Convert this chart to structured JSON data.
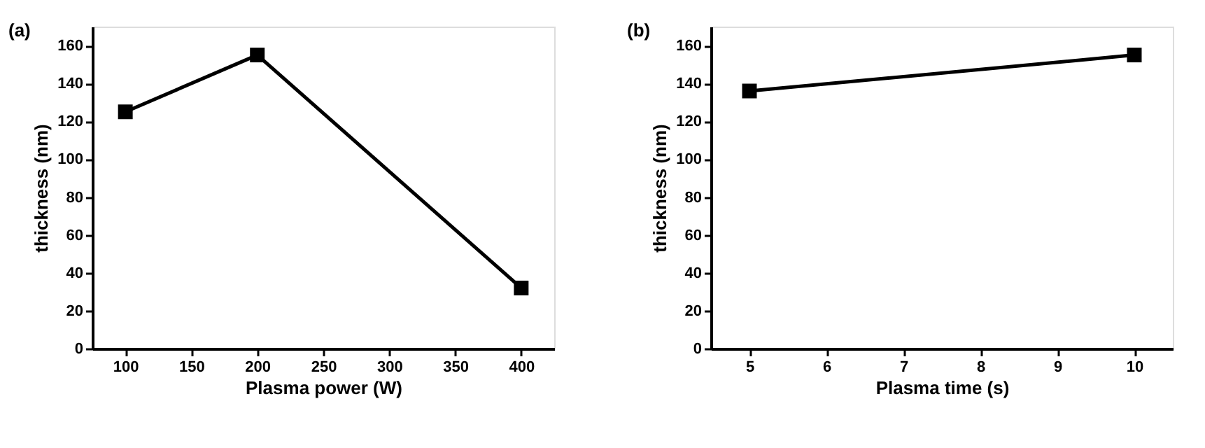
{
  "chart_data": [
    {
      "type": "line",
      "title": "(a)",
      "xlabel": "Plasma power (W)",
      "ylabel": "thickness (nm)",
      "x": [
        100,
        200,
        400
      ],
      "series": [
        {
          "color": "#000000",
          "values": [
            125,
            155,
            32
          ]
        }
      ],
      "xlim": [
        75,
        425
      ],
      "xticks": [
        100,
        150,
        200,
        250,
        300,
        350,
        400
      ],
      "ylim": [
        0,
        170
      ],
      "yticks": [
        0,
        20,
        40,
        60,
        80,
        100,
        120,
        140,
        160
      ],
      "grid": false,
      "marker": "square",
      "line_style": "solid"
    },
    {
      "type": "line",
      "title": "(b)",
      "xlabel": "Plasma time (s)",
      "ylabel": "thickness (nm)",
      "x": [
        5,
        10
      ],
      "series": [
        {
          "color": "#000000",
          "values": [
            136,
            155
          ]
        }
      ],
      "xlim": [
        4.5,
        10.5
      ],
      "xticks": [
        5,
        6,
        7,
        8,
        9,
        10
      ],
      "ylim": [
        0,
        170
      ],
      "yticks": [
        0,
        20,
        40,
        60,
        80,
        100,
        120,
        140,
        160
      ],
      "grid": false,
      "marker": "square",
      "line_style": "solid"
    }
  ]
}
